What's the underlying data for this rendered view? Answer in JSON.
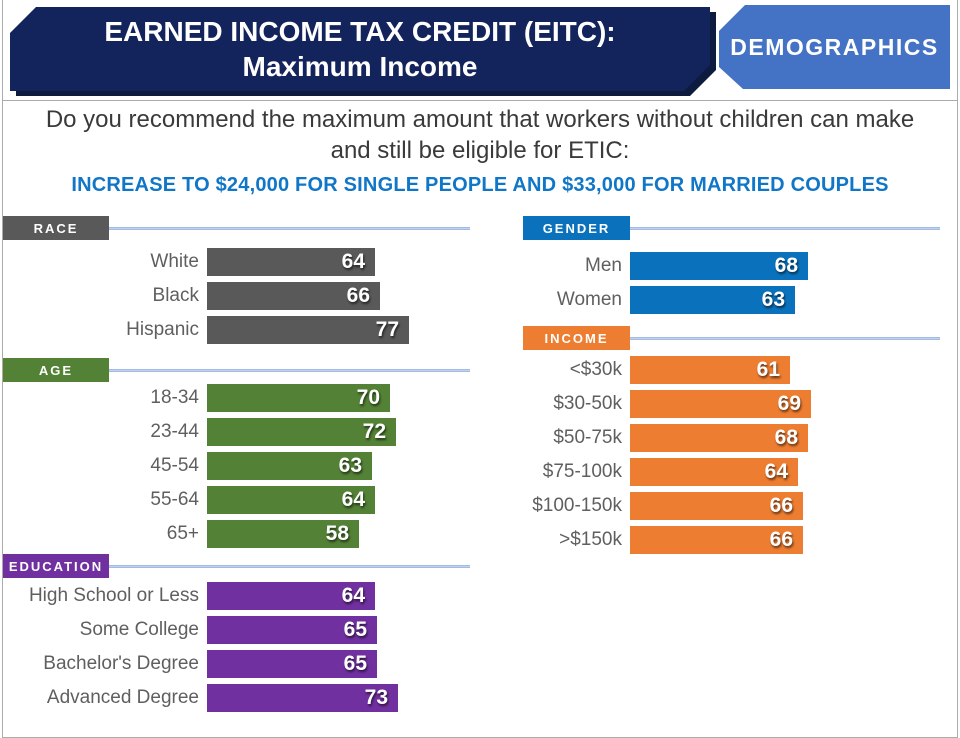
{
  "header": {
    "title_line1": "EARNED INCOME TAX CREDIT (EITC):",
    "title_line2": "Maximum Income",
    "tag_label": "DEMOGRAPHICS"
  },
  "question": "Do you recommend the maximum amount that workers without children can make and still be eligible for ETIC:",
  "highlight": "INCREASE TO $24,000 FOR SINGLE PEOPLE AND $33,000 FOR MARRIED COUPLES",
  "colors": {
    "banner_bg": "#13235B",
    "banner_shadow": "#0D1B3E",
    "tag_bg": "#4472C4",
    "question_text": "#3A3A3A",
    "highlight_text": "#1076C8",
    "divider_line": "#8FAADC",
    "label_text": "#5F5F5F",
    "slide_border": "#ABABAB"
  },
  "chart_data": [
    {
      "id": "race",
      "type": "bar",
      "orientation": "horizontal",
      "title": "RACE",
      "color": "#595959",
      "panel": "left",
      "xlim": [
        0,
        100
      ],
      "grid": false,
      "legend": false,
      "categories": [
        "White",
        "Black",
        "Hispanic"
      ],
      "values": [
        64,
        66,
        77
      ]
    },
    {
      "id": "age",
      "type": "bar",
      "orientation": "horizontal",
      "title": "AGE",
      "color": "#538135",
      "panel": "left",
      "xlim": [
        0,
        100
      ],
      "grid": false,
      "legend": false,
      "categories": [
        "18-34",
        "23-44",
        "45-54",
        "55-64",
        "65+"
      ],
      "values": [
        70,
        72,
        63,
        64,
        58
      ]
    },
    {
      "id": "education",
      "type": "bar",
      "orientation": "horizontal",
      "title": "EDUCATION",
      "color": "#7030A0",
      "panel": "left",
      "xlim": [
        0,
        100
      ],
      "grid": false,
      "legend": false,
      "categories": [
        "High School or Less",
        "Some College",
        "Bachelor's Degree",
        "Advanced Degree"
      ],
      "values": [
        64,
        65,
        65,
        73
      ]
    },
    {
      "id": "gender",
      "type": "bar",
      "orientation": "horizontal",
      "title": "GENDER",
      "color": "#0A72BD",
      "panel": "right",
      "xlim": [
        0,
        100
      ],
      "grid": false,
      "legend": false,
      "categories": [
        "Men",
        "Women"
      ],
      "values": [
        68,
        63
      ]
    },
    {
      "id": "income",
      "type": "bar",
      "orientation": "horizontal",
      "title": "INCOME",
      "color": "#ED7D31",
      "panel": "right",
      "xlim": [
        0,
        100
      ],
      "grid": false,
      "legend": false,
      "categories": [
        "<$30k",
        "$30-50k",
        "$50-75k",
        "$75-100k",
        "$100-150k",
        ">$150k"
      ],
      "values": [
        61,
        69,
        68,
        64,
        66,
        66
      ]
    }
  ]
}
